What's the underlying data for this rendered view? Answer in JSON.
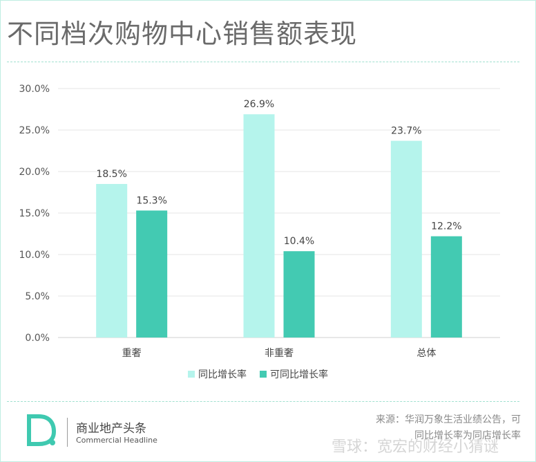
{
  "title": "不同档次购物中心销售额表现",
  "chart_data": {
    "type": "bar",
    "categories": [
      "重奢",
      "非重奢",
      "总体"
    ],
    "series": [
      {
        "name": "同比增长率",
        "values": [
          18.5,
          26.9,
          23.7
        ],
        "color": "#b5f4ec"
      },
      {
        "name": "可同比增长率",
        "values": [
          15.3,
          10.4,
          12.2
        ],
        "color": "#43cab2"
      }
    ],
    "ylim": [
      0,
      30
    ],
    "yticks": [
      0,
      5,
      10,
      15,
      20,
      25,
      30
    ],
    "ytick_labels": [
      "0.0%",
      "5.0%",
      "10.0%",
      "15.0%",
      "20.0%",
      "25.0%",
      "30.0%"
    ],
    "data_labels": [
      [
        "18.5%",
        "26.9%",
        "23.7%"
      ],
      [
        "15.3%",
        "10.4%",
        "12.2%"
      ]
    ],
    "legend_position": "bottom",
    "grid": true
  },
  "footer": {
    "brand_cn": "商业地产头条",
    "brand_en": "Commercial Headline",
    "source_line1": "来源：华润万象生活业绩公告，可",
    "source_line2": "同比增长率为同店增长率",
    "watermark": "雪球：宽宏的财经小猜谜"
  }
}
